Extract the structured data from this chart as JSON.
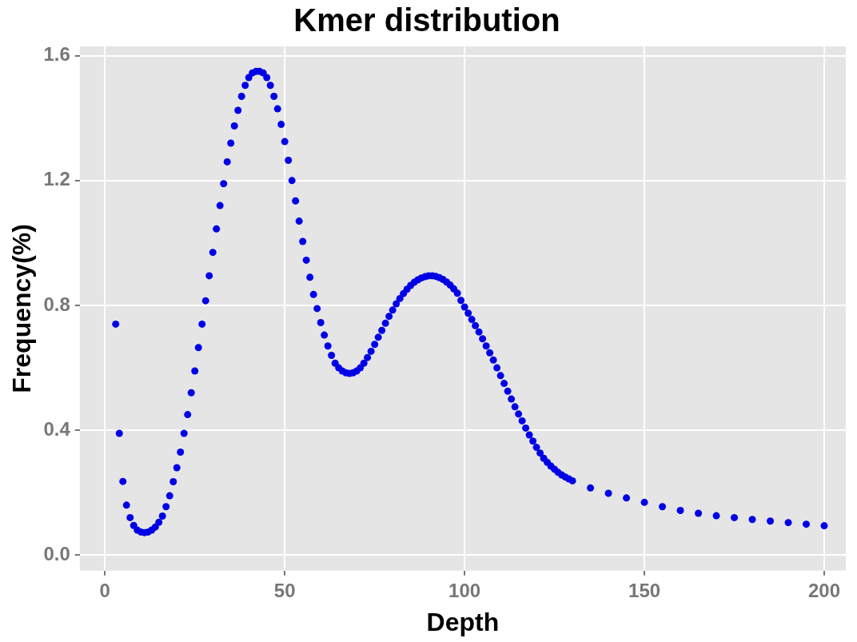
{
  "chart_data": {
    "type": "scatter",
    "title": "Kmer distribution",
    "xlabel": "Depth",
    "ylabel": "Frequency(%)",
    "xlim": [
      -7,
      206
    ],
    "xticks": [
      0,
      50,
      100,
      150,
      200
    ],
    "ylim": [
      -0.05,
      1.63
    ],
    "yticks": [
      {
        "value": 0,
        "label": "0.0"
      },
      {
        "value": 0.4,
        "label": "0.4"
      },
      {
        "value": 0.8,
        "label": "0.8"
      },
      {
        "value": 1.2,
        "label": "1.2"
      },
      {
        "value": 1.6,
        "label": "1.6"
      }
    ],
    "grid": true,
    "legend": false,
    "marker": "circle",
    "series": [
      {
        "color": "#0000e6",
        "x": [
          3,
          4,
          5,
          6,
          7,
          8,
          9,
          10,
          11,
          12,
          13,
          14,
          15,
          16,
          17,
          18,
          19,
          20,
          21,
          22,
          23,
          24,
          25,
          26,
          27,
          28,
          29,
          30,
          31,
          32,
          33,
          34,
          35,
          36,
          37,
          38,
          39,
          40,
          41,
          42,
          43,
          44,
          45,
          46,
          47,
          48,
          49,
          50,
          51,
          52,
          53,
          54,
          55,
          56,
          57,
          58,
          59,
          60,
          61,
          62,
          63,
          64,
          65,
          66,
          67,
          68,
          69,
          70,
          71,
          72,
          73,
          74,
          75,
          76,
          77,
          78,
          79,
          80,
          81,
          82,
          83,
          84,
          85,
          86,
          87,
          88,
          89,
          90,
          91,
          92,
          93,
          94,
          95,
          96,
          97,
          98,
          99,
          100,
          101,
          102,
          103,
          104,
          105,
          106,
          107,
          108,
          109,
          110,
          111,
          112,
          113,
          114,
          115,
          116,
          117,
          118,
          119,
          120,
          121,
          122,
          123,
          124,
          125,
          126,
          127,
          128,
          129,
          130,
          135,
          140,
          145,
          150,
          155,
          160,
          165,
          170,
          175,
          180,
          185,
          190,
          195,
          200
        ],
        "values": [
          0.74,
          0.39,
          0.236,
          0.16,
          0.12,
          0.095,
          0.08,
          0.074,
          0.072,
          0.074,
          0.08,
          0.09,
          0.105,
          0.125,
          0.155,
          0.19,
          0.235,
          0.28,
          0.33,
          0.39,
          0.45,
          0.52,
          0.59,
          0.665,
          0.74,
          0.815,
          0.895,
          0.97,
          1.045,
          1.12,
          1.19,
          1.26,
          1.32,
          1.375,
          1.425,
          1.47,
          1.505,
          1.53,
          1.545,
          1.55,
          1.55,
          1.545,
          1.53,
          1.505,
          1.47,
          1.43,
          1.38,
          1.325,
          1.265,
          1.2,
          1.135,
          1.07,
          1.005,
          0.945,
          0.89,
          0.835,
          0.79,
          0.745,
          0.705,
          0.67,
          0.64,
          0.615,
          0.6,
          0.59,
          0.584,
          0.582,
          0.584,
          0.59,
          0.6,
          0.615,
          0.633,
          0.653,
          0.675,
          0.698,
          0.72,
          0.743,
          0.765,
          0.785,
          0.805,
          0.822,
          0.838,
          0.852,
          0.864,
          0.874,
          0.882,
          0.888,
          0.892,
          0.895,
          0.895,
          0.893,
          0.889,
          0.883,
          0.875,
          0.865,
          0.853,
          0.839,
          0.816,
          0.795,
          0.775,
          0.755,
          0.735,
          0.715,
          0.693,
          0.67,
          0.648,
          0.625,
          0.6,
          0.575,
          0.55,
          0.525,
          0.5,
          0.475,
          0.452,
          0.43,
          0.407,
          0.385,
          0.365,
          0.345,
          0.327,
          0.31,
          0.297,
          0.285,
          0.275,
          0.265,
          0.257,
          0.25,
          0.244,
          0.238,
          0.215,
          0.198,
          0.183,
          0.169,
          0.155,
          0.143,
          0.134,
          0.126,
          0.12,
          0.114,
          0.109,
          0.104,
          0.099,
          0.094
        ]
      }
    ]
  }
}
